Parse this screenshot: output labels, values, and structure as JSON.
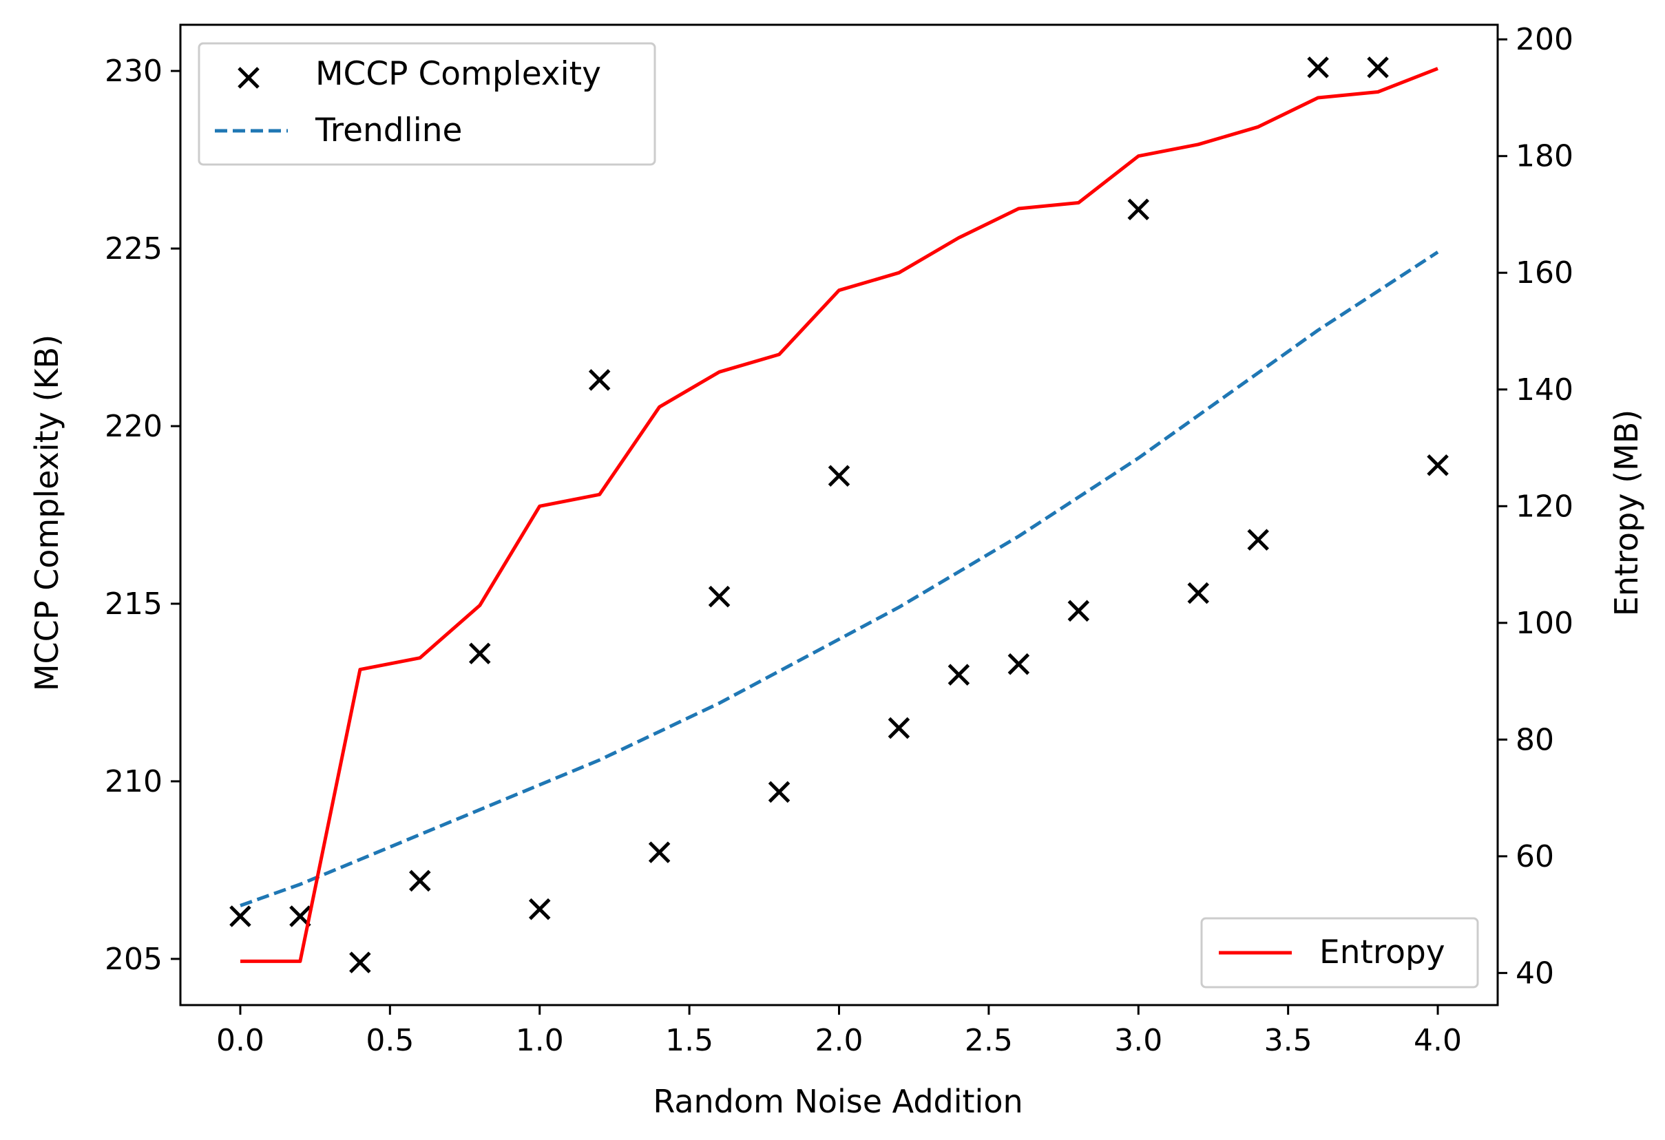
{
  "chart_data": {
    "type": "scatter",
    "title": "",
    "xlabel": "Random Noise Addition",
    "ylabel": "MCCP Complexity (KB)",
    "y2label": "Entropy (MB)",
    "xlim": [
      -0.2,
      4.2
    ],
    "ylim": [
      203.7,
      231.3
    ],
    "y2lim": [
      34.5,
      202.5
    ],
    "x_ticks": [
      0.0,
      0.5,
      1.0,
      1.5,
      2.0,
      2.5,
      3.0,
      3.5,
      4.0
    ],
    "x_tick_labels": [
      "0.0",
      "0.5",
      "1.0",
      "1.5",
      "2.0",
      "2.5",
      "3.0",
      "3.5",
      "4.0"
    ],
    "y_ticks": [
      205,
      210,
      215,
      220,
      225,
      230
    ],
    "y_tick_labels": [
      "205",
      "210",
      "215",
      "220",
      "225",
      "230"
    ],
    "y2_ticks": [
      40,
      60,
      80,
      100,
      120,
      140,
      160,
      180,
      200
    ],
    "y2_tick_labels": [
      "40",
      "60",
      "80",
      "100",
      "120",
      "140",
      "160",
      "180",
      "200"
    ],
    "grid": false,
    "legend_main": {
      "placement": "top-left",
      "entries": [
        "MCCP Complexity",
        "Trendline"
      ]
    },
    "legend_secondary": {
      "placement": "bottom-right",
      "entries": [
        "Entropy"
      ]
    },
    "series": [
      {
        "name": "MCCP Complexity",
        "kind": "scatter",
        "marker": "x",
        "color": "#000000",
        "axis": "left",
        "x": [
          0.0,
          0.2,
          0.4,
          0.6,
          0.8,
          1.0,
          1.2,
          1.4,
          1.6,
          1.8,
          2.0,
          2.2,
          2.4,
          2.6,
          2.8,
          3.0,
          3.2,
          3.4,
          3.6,
          3.8,
          4.0
        ],
        "y": [
          206.2,
          206.2,
          204.9,
          207.2,
          213.6,
          206.4,
          221.3,
          208.0,
          215.2,
          209.7,
          218.6,
          211.5,
          213.0,
          213.3,
          214.8,
          226.1,
          215.3,
          216.8,
          230.1,
          230.1,
          218.9
        ]
      },
      {
        "name": "Trendline",
        "kind": "line",
        "dash": "dashed",
        "color": "#1f77b4",
        "axis": "left",
        "x": [
          0.0,
          0.2,
          0.4,
          0.6,
          0.8,
          1.0,
          1.2,
          1.4,
          1.6,
          1.8,
          2.0,
          2.2,
          2.4,
          2.6,
          2.8,
          3.0,
          3.2,
          3.4,
          3.6,
          3.8,
          4.0
        ],
        "y": [
          206.5,
          207.1,
          207.8,
          208.5,
          209.2,
          209.9,
          210.6,
          211.4,
          212.2,
          213.1,
          214.0,
          214.9,
          215.9,
          216.9,
          218.0,
          219.1,
          220.3,
          221.5,
          222.7,
          223.8,
          224.9
        ]
      },
      {
        "name": "Entropy",
        "kind": "line",
        "color": "#ff0000",
        "axis": "right",
        "x": [
          0.0,
          0.2,
          0.4,
          0.6,
          0.8,
          1.0,
          1.2,
          1.4,
          1.6,
          1.8,
          2.0,
          2.2,
          2.4,
          2.6,
          2.8,
          3.0,
          3.2,
          3.4,
          3.6,
          3.8,
          4.0
        ],
        "y": [
          42,
          42,
          92,
          94,
          103,
          120,
          122,
          137,
          143,
          146,
          157,
          160,
          166,
          171,
          172,
          180,
          182,
          185,
          190,
          191,
          195
        ]
      }
    ]
  }
}
